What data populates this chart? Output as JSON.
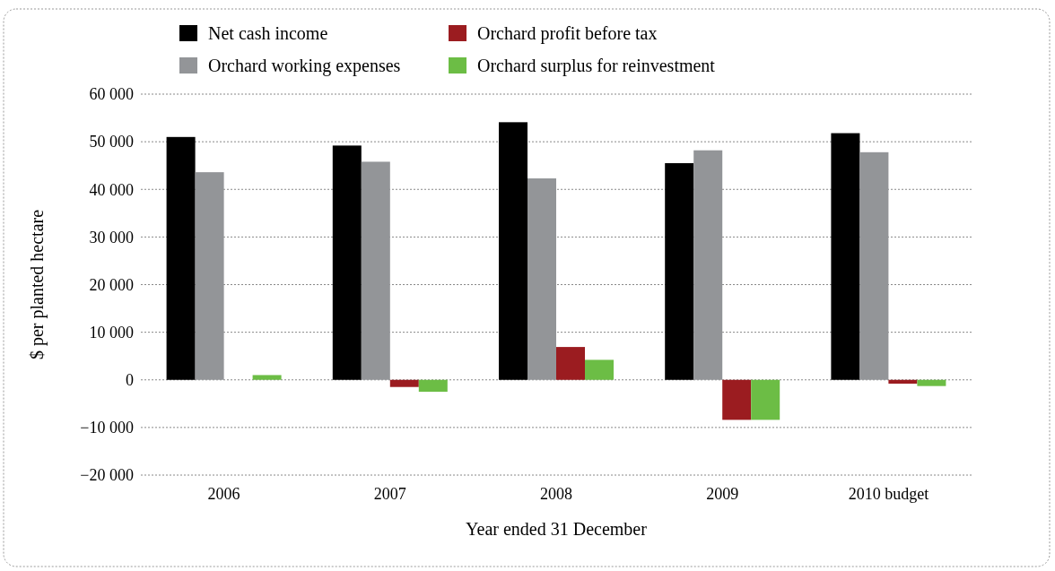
{
  "chart_data": {
    "type": "bar",
    "xlabel": "Year ended 31 December",
    "ylabel": "$ per planted hectare",
    "categories": [
      "2006",
      "2007",
      "2008",
      "2009",
      "2010 budget"
    ],
    "series": [
      {
        "name": "Net cash income",
        "color": "#000000",
        "values": [
          51000,
          49200,
          54100,
          45500,
          51800
        ]
      },
      {
        "name": "Orchard working expenses",
        "color": "#939598",
        "values": [
          43600,
          45800,
          42300,
          48200,
          47800
        ]
      },
      {
        "name": "Orchard profit before tax",
        "color": "#9b1c20",
        "values": [
          0,
          -1500,
          6900,
          -8400,
          -800
        ]
      },
      {
        "name": "Orchard surplus for reinvestment",
        "color": "#6cbd45",
        "values": [
          1000,
          -2500,
          4200,
          -8400,
          -1300
        ]
      }
    ],
    "ylim": [
      -20000,
      60000
    ],
    "yticks": [
      {
        "value": -20000,
        "label": "−20 000"
      },
      {
        "value": -10000,
        "label": "−10 000"
      },
      {
        "value": 0,
        "label": "0"
      },
      {
        "value": 10000,
        "label": "10 000"
      },
      {
        "value": 20000,
        "label": "20 000"
      },
      {
        "value": 30000,
        "label": "30 000"
      },
      {
        "value": 40000,
        "label": "40 000"
      },
      {
        "value": 50000,
        "label": "50 000"
      },
      {
        "value": 60000,
        "label": "60 000"
      }
    ],
    "grid": "y",
    "legend": "top"
  }
}
